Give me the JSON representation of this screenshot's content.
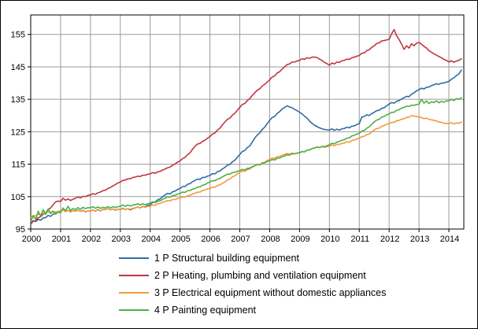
{
  "window": {
    "title": "Index chart 2000-2014"
  },
  "colors": {
    "background": "#ffffff",
    "plot_border": "#000000",
    "grid": "#9a9a9a",
    "axis": "#000000",
    "series_blue": "#2e6da4",
    "series_red": "#c0373e",
    "series_orange": "#f29b3b",
    "series_green": "#4fae47"
  },
  "chart_data": {
    "type": "line",
    "title": "",
    "xlabel": "",
    "ylabel": "",
    "grid": true,
    "legend_position": "bottom",
    "x_start_year": 2000,
    "x_step": "month",
    "x_ticks": [
      2000,
      2001,
      2002,
      2003,
      2004,
      2005,
      2006,
      2007,
      2008,
      2009,
      2010,
      2011,
      2012,
      2013,
      2014
    ],
    "y_ticks": [
      95,
      105,
      115,
      125,
      135,
      145,
      155
    ],
    "ylim": [
      95,
      161
    ],
    "series": [
      {
        "name": "1 P Structural building equipment",
        "color": "#2e6da4",
        "values": [
          97.0,
          97.6,
          97.3,
          98.0,
          97.7,
          98.4,
          98.5,
          99.2,
          98.9,
          99.6,
          99.8,
          100.3,
          100.5,
          100.9,
          100.4,
          100.8,
          100.3,
          100.7,
          100.5,
          100.9,
          100.4,
          100.8,
          100.3,
          100.6,
          100.5,
          100.9,
          100.5,
          101.0,
          100.6,
          101.1,
          101.0,
          101.3,
          100.9,
          101.2,
          100.8,
          101.1,
          101.0,
          101.4,
          101.0,
          101.3,
          100.9,
          101.3,
          101.5,
          101.8,
          101.5,
          102.0,
          101.8,
          102.3,
          102.5,
          103.2,
          103.3,
          104.0,
          104.3,
          105.0,
          105.5,
          106.0,
          105.8,
          106.5,
          106.7,
          107.2,
          107.5,
          108.1,
          108.1,
          108.8,
          109.0,
          109.6,
          110.0,
          110.4,
          110.3,
          110.9,
          110.9,
          111.3,
          111.5,
          112.1,
          112.0,
          112.7,
          112.9,
          113.5,
          114.0,
          114.7,
          114.9,
          115.7,
          116.2,
          117.1,
          118.0,
          118.9,
          119.2,
          120.1,
          120.6,
          121.8,
          123.0,
          124.0,
          124.6,
          125.7,
          126.4,
          127.5,
          128.5,
          129.4,
          129.7,
          130.6,
          131.2,
          132.0,
          132.5,
          133.0,
          132.6,
          132.4,
          131.9,
          131.5,
          131.0,
          130.5,
          129.8,
          129.2,
          128.3,
          127.6,
          127.0,
          126.6,
          126.2,
          125.9,
          125.7,
          125.6,
          125.5,
          125.9,
          125.4,
          125.8,
          125.5,
          125.9,
          126.0,
          126.4,
          126.2,
          126.7,
          126.8,
          127.2,
          127.5,
          129.5,
          129.7,
          130.2,
          130.0,
          130.6,
          131.0,
          131.5,
          131.6,
          132.2,
          132.4,
          133.0,
          133.5,
          134.0,
          133.8,
          134.4,
          134.6,
          135.1,
          135.5,
          135.9,
          135.8,
          136.6,
          137.0,
          137.6,
          138.0,
          138.4,
          138.2,
          138.7,
          138.8,
          139.2,
          139.5,
          139.8,
          139.6,
          140.0,
          140.0,
          140.3,
          140.5,
          141.2,
          141.6,
          142.3,
          142.8,
          144.0
        ]
      },
      {
        "name": "2 P Heating, plumbing and ventilation equipment",
        "color": "#c0373e",
        "values": [
          96.5,
          97.4,
          97.6,
          98.5,
          98.8,
          99.6,
          100.0,
          101.0,
          101.5,
          102.5,
          103.4,
          103.6,
          103.5,
          104.5,
          103.9,
          104.3,
          103.8,
          104.2,
          104.5,
          104.9,
          104.6,
          105.1,
          105.0,
          105.4,
          105.5,
          105.9,
          105.7,
          106.2,
          106.4,
          106.8,
          107.0,
          107.5,
          107.8,
          108.3,
          108.7,
          109.2,
          109.5,
          110.0,
          110.1,
          110.5,
          110.5,
          110.9,
          111.0,
          111.3,
          111.2,
          111.6,
          111.6,
          111.9,
          112.0,
          112.4,
          112.2,
          112.6,
          112.8,
          113.2,
          113.5,
          113.9,
          114.1,
          114.7,
          115.1,
          115.6,
          116.0,
          116.7,
          117.1,
          117.9,
          118.5,
          119.6,
          120.5,
          121.2,
          121.4,
          122.0,
          122.4,
          123.0,
          123.5,
          124.3,
          124.6,
          125.5,
          126.1,
          127.1,
          128.0,
          128.8,
          129.2,
          130.1,
          130.7,
          131.6,
          132.5,
          133.4,
          133.7,
          134.6,
          135.2,
          136.2,
          137.0,
          137.8,
          138.2,
          139.1,
          139.6,
          140.3,
          141.0,
          141.9,
          142.2,
          143.1,
          143.5,
          144.3,
          145.0,
          145.7,
          145.9,
          146.5,
          146.5,
          146.8,
          147.0,
          147.5,
          147.3,
          147.8,
          147.6,
          148.0,
          148.0,
          147.9,
          147.4,
          147.0,
          146.4,
          146.0,
          145.5,
          146.2,
          145.9,
          146.5,
          146.4,
          146.9,
          147.0,
          147.4,
          147.3,
          147.8,
          148.0,
          148.3,
          148.5,
          149.2,
          149.3,
          150.0,
          150.3,
          151.0,
          151.5,
          152.2,
          152.4,
          153.0,
          153.1,
          153.3,
          153.5,
          155.2,
          156.5,
          154.6,
          153.4,
          152.0,
          150.4,
          151.5,
          150.8,
          152.1,
          151.5,
          152.3,
          152.5,
          152.0,
          151.3,
          150.8,
          150.0,
          149.5,
          149.0,
          148.6,
          148.2,
          147.8,
          147.3,
          147.0,
          146.5,
          146.9,
          146.4,
          146.8,
          147.0,
          147.5
        ]
      },
      {
        "name": "3 P Electrical equipment without domestic appliances",
        "color": "#f29b3b",
        "values": [
          98.5,
          99.2,
          99.0,
          99.6,
          99.4,
          99.9,
          100.0,
          100.4,
          100.1,
          100.5,
          100.2,
          100.5,
          100.5,
          100.9,
          100.4,
          100.8,
          100.4,
          100.7,
          100.5,
          100.8,
          100.4,
          100.7,
          100.4,
          100.6,
          100.5,
          100.9,
          100.5,
          100.9,
          100.6,
          101.0,
          101.0,
          101.3,
          100.9,
          101.2,
          100.9,
          101.1,
          101.0,
          101.3,
          101.0,
          101.3,
          101.1,
          101.4,
          101.5,
          101.8,
          101.5,
          101.9,
          101.7,
          102.0,
          102.0,
          102.4,
          102.3,
          102.8,
          102.9,
          103.3,
          103.5,
          103.8,
          103.7,
          104.1,
          104.1,
          104.4,
          104.5,
          104.9,
          104.8,
          105.3,
          105.4,
          105.8,
          106.0,
          106.4,
          106.4,
          106.9,
          107.0,
          107.4,
          107.5,
          107.9,
          107.9,
          108.4,
          108.6,
          109.1,
          109.5,
          110.1,
          110.4,
          111.1,
          111.4,
          112.0,
          112.5,
          112.9,
          112.8,
          113.3,
          113.5,
          114.1,
          114.5,
          114.9,
          114.8,
          115.4,
          115.6,
          116.1,
          116.5,
          116.9,
          116.8,
          117.3,
          117.4,
          117.8,
          118.0,
          118.3,
          118.1,
          118.4,
          118.2,
          118.4,
          118.5,
          118.9,
          118.8,
          119.3,
          119.4,
          119.8,
          120.0,
          120.3,
          120.1,
          120.4,
          120.2,
          120.4,
          120.5,
          120.9,
          120.7,
          121.1,
          121.1,
          121.4,
          121.5,
          121.9,
          121.8,
          122.3,
          122.4,
          122.8,
          123.0,
          123.5,
          123.6,
          124.1,
          124.3,
          124.9,
          125.5,
          126.0,
          126.1,
          126.7,
          126.9,
          127.3,
          127.5,
          127.9,
          127.9,
          128.4,
          128.5,
          128.9,
          129.0,
          129.4,
          129.5,
          130.0,
          129.8,
          129.7,
          129.5,
          129.4,
          129.0,
          129.2,
          128.8,
          128.7,
          128.5,
          128.3,
          128.0,
          127.9,
          127.6,
          127.6,
          127.5,
          127.8,
          127.4,
          127.7,
          127.6,
          128.0
        ]
      },
      {
        "name": "4 P Painting equipment",
        "color": "#4fae47",
        "values": [
          97.5,
          99.0,
          98.0,
          100.5,
          99.0,
          101.0,
          99.5,
          101.2,
          99.8,
          100.5,
          99.6,
          100.2,
          100.0,
          101.5,
          100.6,
          102.0,
          100.8,
          101.3,
          101.0,
          101.6,
          101.1,
          101.7,
          101.3,
          101.6,
          101.5,
          101.9,
          101.4,
          101.8,
          101.4,
          101.7,
          101.5,
          101.9,
          101.5,
          101.9,
          101.6,
          101.9,
          102.0,
          102.4,
          102.0,
          102.4,
          102.1,
          102.4,
          102.5,
          102.8,
          102.4,
          102.8,
          102.5,
          102.8,
          103.0,
          103.4,
          103.1,
          103.6,
          103.7,
          104.2,
          104.5,
          104.9,
          104.8,
          105.3,
          105.4,
          105.8,
          106.0,
          106.4,
          106.3,
          106.8,
          106.9,
          107.3,
          107.5,
          107.9,
          108.0,
          108.5,
          108.7,
          109.2,
          109.5,
          109.9,
          109.9,
          110.4,
          110.6,
          111.1,
          111.5,
          111.9,
          111.9,
          112.4,
          112.5,
          112.8,
          113.0,
          113.4,
          113.2,
          113.7,
          113.8,
          114.2,
          114.5,
          114.9,
          114.8,
          115.3,
          115.4,
          115.8,
          116.0,
          116.4,
          116.3,
          116.8,
          116.9,
          117.3,
          117.5,
          117.9,
          117.8,
          118.2,
          118.2,
          118.4,
          118.5,
          118.9,
          118.8,
          119.3,
          119.4,
          119.8,
          120.0,
          120.3,
          120.1,
          120.5,
          120.4,
          120.7,
          121.0,
          121.4,
          121.3,
          121.8,
          122.0,
          122.4,
          122.5,
          123.0,
          123.1,
          123.7,
          123.9,
          124.3,
          124.5,
          125.2,
          125.4,
          126.1,
          126.5,
          127.3,
          128.0,
          128.6,
          128.8,
          129.5,
          129.7,
          130.2,
          130.5,
          131.0,
          131.0,
          131.6,
          131.8,
          132.3,
          132.5,
          132.9,
          132.8,
          133.2,
          133.1,
          133.4,
          133.5,
          135.0,
          133.8,
          134.5,
          133.7,
          134.2,
          134.0,
          134.5,
          133.9,
          134.4,
          134.1,
          134.5,
          134.5,
          135.0,
          134.6,
          135.2,
          135.0,
          135.5
        ]
      }
    ]
  }
}
